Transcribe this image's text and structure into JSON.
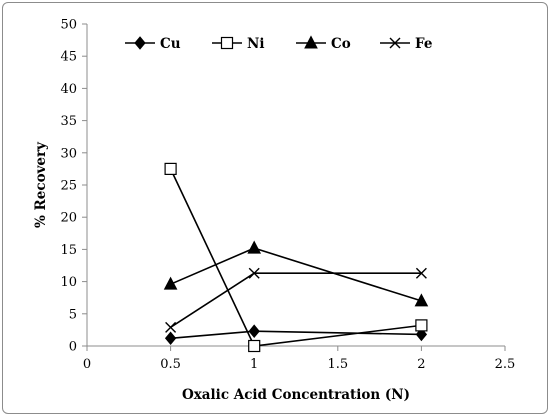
{
  "chart_data": {
    "type": "line",
    "xlabel": "Oxalic Acid Concentration (N)",
    "ylabel": "% Recovery",
    "xlim": [
      0,
      2.5
    ],
    "ylim": [
      0,
      50
    ],
    "x_ticks": [
      0,
      0.5,
      1,
      1.5,
      2,
      2.5
    ],
    "y_ticks": [
      0,
      5,
      10,
      15,
      20,
      25,
      30,
      35,
      40,
      45,
      50
    ],
    "grid": false,
    "legend_position": "top",
    "series": [
      {
        "name": "Cu",
        "marker": "diamond",
        "x": [
          0.5,
          1,
          2
        ],
        "y": [
          1.2,
          2.3,
          1.8
        ]
      },
      {
        "name": "Ni",
        "marker": "open-square",
        "x": [
          0.5,
          1,
          2
        ],
        "y": [
          27.5,
          0.0,
          3.2
        ]
      },
      {
        "name": "Co",
        "marker": "triangle",
        "x": [
          0.5,
          1,
          2
        ],
        "y": [
          9.6,
          15.2,
          7.0
        ]
      },
      {
        "name": "Fe",
        "marker": "x",
        "x": [
          0.5,
          1,
          2
        ],
        "y": [
          2.9,
          11.3,
          11.3
        ]
      }
    ],
    "colors": {
      "line": "#000000",
      "axis": "#8c8c8c"
    }
  }
}
